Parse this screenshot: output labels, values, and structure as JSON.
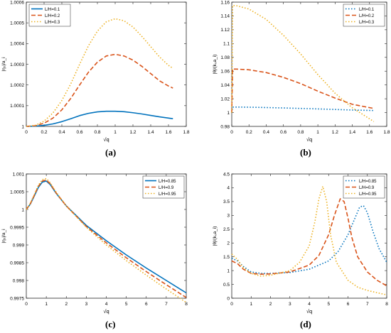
{
  "captions": {
    "a": "(a)",
    "b": "(b)",
    "c": "(c)",
    "d": "(d)"
  },
  "chart_data": [
    {
      "type": "line",
      "xlabel": "√q",
      "ylabel": "|η₀|/a_i",
      "xlim": [
        0,
        1.8
      ],
      "ylim": [
        1,
        1.0006
      ],
      "xticks": [
        0,
        0.2,
        0.4,
        0.6,
        0.8,
        1,
        1.2,
        1.4,
        1.6,
        1.8
      ],
      "xtick_labels": [
        "0",
        "0.2",
        "0.4",
        "0.6",
        "0.8",
        "1",
        "1.2",
        "1.4",
        "1.6",
        "1.8"
      ],
      "yticks": [
        1,
        1.0001,
        1.0002,
        1.0003,
        1.0004,
        1.0005,
        1.0006
      ],
      "ytick_labels": [
        "1",
        "1.0001",
        "1.0002",
        "1.0003",
        "1.0004",
        "1.0005",
        "1.0006"
      ],
      "legend": "top-left",
      "series": [
        {
          "name": "L/H=0.1",
          "color": "#0072BD",
          "style": "solid",
          "x": [
            0,
            0.1,
            0.2,
            0.3,
            0.4,
            0.5,
            0.6,
            0.7,
            0.8,
            0.9,
            1.0,
            1.1,
            1.2,
            1.3,
            1.4,
            1.5,
            1.6,
            1.65
          ],
          "y": [
            1.0,
            1.000001,
            1.000005,
            1.000012,
            1.000023,
            1.000037,
            1.000052,
            1.000063,
            1.00007,
            1.000073,
            1.000073,
            1.000071,
            1.000066,
            1.00006,
            1.000053,
            1.000046,
            1.00004,
            1.000037
          ]
        },
        {
          "name": "L/H=0.2",
          "color": "#D95319",
          "style": "dashed",
          "x": [
            0,
            0.1,
            0.2,
            0.3,
            0.4,
            0.5,
            0.6,
            0.7,
            0.8,
            0.9,
            1.0,
            1.1,
            1.2,
            1.3,
            1.4,
            1.5,
            1.6,
            1.65
          ],
          "y": [
            1.0,
            1.000003,
            1.000015,
            1.00004,
            1.00008,
            1.000135,
            1.0002,
            1.000262,
            1.00031,
            1.00034,
            1.000348,
            1.00034,
            1.00032,
            1.00029,
            1.000255,
            1.00022,
            1.000195,
            1.000185
          ]
        },
        {
          "name": "L/H=0.3",
          "color": "#EDB120",
          "style": "dotted",
          "x": [
            0,
            0.1,
            0.2,
            0.3,
            0.4,
            0.5,
            0.6,
            0.7,
            0.8,
            0.9,
            1.0,
            1.1,
            1.2,
            1.3,
            1.4,
            1.5,
            1.6,
            1.65
          ],
          "y": [
            1.0,
            1.000005,
            1.000025,
            1.000065,
            1.000125,
            1.000205,
            1.0003,
            1.00039,
            1.00046,
            1.000505,
            1.00052,
            1.00051,
            1.00048,
            1.000435,
            1.000385,
            1.000335,
            1.000295,
            1.00028
          ]
        }
      ]
    },
    {
      "type": "line",
      "xlabel": "√q",
      "ylabel": "|θ|/(k₀a_i)",
      "xlim": [
        0,
        1.8
      ],
      "ylim": [
        0.98,
        1.16
      ],
      "xticks": [
        0,
        0.2,
        0.4,
        0.6,
        0.8,
        1,
        1.2,
        1.4,
        1.6,
        1.8
      ],
      "xtick_labels": [
        "0",
        "0.2",
        "0.4",
        "0.6",
        "0.8",
        "1",
        "1.2",
        "1.4",
        "1.6",
        "1.8"
      ],
      "yticks": [
        0.98,
        1,
        1.02,
        1.04,
        1.06,
        1.08,
        1.1,
        1.12,
        1.14,
        1.16
      ],
      "ytick_labels": [
        "0.98",
        "1",
        "1.02",
        "1.04",
        "1.06",
        "1.08",
        "1.1",
        "1.12",
        "1.14",
        "1.16"
      ],
      "legend": "top-right",
      "series": [
        {
          "name": "L/H=0.1",
          "color": "#0072BD",
          "style": "dotted",
          "x": [
            0,
            0.01,
            0.05,
            0.2,
            0.4,
            0.6,
            0.8,
            1.0,
            1.2,
            1.4,
            1.65
          ],
          "y": [
            1.0,
            1.008,
            1.008,
            1.0078,
            1.0073,
            1.0067,
            1.006,
            1.0053,
            1.0045,
            1.0037,
            1.003
          ]
        },
        {
          "name": "L/H=0.2",
          "color": "#D95319",
          "style": "dashed",
          "x": [
            0,
            0.01,
            0.05,
            0.2,
            0.4,
            0.6,
            0.8,
            1.0,
            1.2,
            1.4,
            1.65
          ],
          "y": [
            1.0,
            1.063,
            1.063,
            1.062,
            1.058,
            1.051,
            1.042,
            1.031,
            1.021,
            1.012,
            1.006
          ]
        },
        {
          "name": "L/H=0.3",
          "color": "#EDB120",
          "style": "dotted",
          "x": [
            0,
            0.01,
            0.05,
            0.2,
            0.4,
            0.6,
            0.8,
            1.0,
            1.2,
            1.4,
            1.65
          ],
          "y": [
            1.0,
            1.155,
            1.155,
            1.15,
            1.135,
            1.112,
            1.085,
            1.055,
            1.028,
            1.007,
            0.987
          ]
        }
      ]
    },
    {
      "type": "line",
      "xlabel": "√q",
      "ylabel": "|η₀|/a_i",
      "xlim": [
        0,
        8
      ],
      "ylim": [
        0.9975,
        1.001
      ],
      "xticks": [
        0,
        1,
        2,
        3,
        4,
        5,
        6,
        7,
        8
      ],
      "xtick_labels": [
        "0",
        "1",
        "2",
        "3",
        "4",
        "5",
        "6",
        "7",
        "8"
      ],
      "yticks": [
        0.9975,
        0.998,
        0.9985,
        0.999,
        0.9995,
        1,
        1.0005,
        1.001
      ],
      "ytick_labels": [
        "0.9975",
        "0.998",
        "0.9985",
        "0.999",
        "0.9995",
        "1",
        "1.0005",
        "1.001"
      ],
      "legend": "top-right",
      "series": [
        {
          "name": "L/H=0.85",
          "color": "#0072BD",
          "style": "solid",
          "x": [
            0,
            0.2,
            0.4,
            0.6,
            0.8,
            1.0,
            1.2,
            1.5,
            2,
            3,
            4,
            5,
            6,
            7,
            8
          ],
          "y": [
            1.0,
            1.00015,
            1.00038,
            1.00062,
            1.00077,
            1.0008,
            1.0007,
            1.00045,
            1.0001,
            0.99955,
            0.99912,
            0.99872,
            0.99835,
            0.998,
            0.99765
          ]
        },
        {
          "name": "L/H=0.9",
          "color": "#D95319",
          "style": "dashed",
          "x": [
            0,
            0.2,
            0.4,
            0.6,
            0.8,
            1.0,
            1.2,
            1.5,
            2,
            3,
            4,
            5,
            6,
            7,
            8
          ],
          "y": [
            1.0,
            1.00016,
            1.0004,
            1.00065,
            1.0008,
            1.00083,
            1.00072,
            1.00046,
            1.0001,
            0.99952,
            0.99906,
            0.99864,
            0.99825,
            0.99788,
            0.99752
          ]
        },
        {
          "name": "L/H=0.95",
          "color": "#EDB120",
          "style": "dotted",
          "x": [
            0,
            0.2,
            0.4,
            0.6,
            0.8,
            1.0,
            1.2,
            1.5,
            2,
            3,
            4,
            5,
            6,
            7,
            8
          ],
          "y": [
            1.0,
            1.00017,
            1.00042,
            1.00068,
            1.00084,
            1.00087,
            1.00075,
            1.00048,
            1.0001,
            0.9995,
            0.999,
            0.99856,
            0.99815,
            0.99776,
            0.99738
          ]
        }
      ]
    },
    {
      "type": "line",
      "xlabel": "√q",
      "ylabel": "|θ|/(k₀a_i)",
      "xlim": [
        0,
        8
      ],
      "ylim": [
        0,
        4.5
      ],
      "xticks": [
        0,
        1,
        2,
        3,
        4,
        5,
        6,
        7,
        8
      ],
      "xtick_labels": [
        "0",
        "1",
        "2",
        "3",
        "4",
        "5",
        "6",
        "7",
        "8"
      ],
      "yticks": [
        0,
        0.5,
        1,
        1.5,
        2,
        2.5,
        3,
        3.5,
        4,
        4.5
      ],
      "ytick_labels": [
        "0",
        "0.5",
        "1",
        "1.5",
        "2",
        "2.5",
        "3",
        "3.5",
        "4",
        "4.5"
      ],
      "legend": "top-right",
      "series": [
        {
          "name": "L/H=0.85",
          "color": "#0072BD",
          "style": "dotted",
          "x": [
            0,
            0.3,
            0.6,
            1.0,
            1.5,
            2,
            3,
            4,
            5,
            5.5,
            6,
            6.3,
            6.6,
            6.8,
            7.0,
            7.3,
            7.6,
            8.0
          ],
          "y": [
            1.45,
            1.35,
            1.15,
            0.95,
            0.9,
            0.9,
            0.93,
            1.05,
            1.35,
            1.7,
            2.3,
            2.8,
            3.3,
            3.35,
            3.1,
            2.4,
            1.8,
            1.3
          ]
        },
        {
          "name": "L/H=0.9",
          "color": "#D95319",
          "style": "dashed",
          "x": [
            0,
            0.3,
            0.6,
            1.0,
            1.5,
            2,
            3,
            4,
            4.5,
            5.0,
            5.3,
            5.6,
            5.8,
            6.0,
            6.2,
            6.5,
            7.0,
            7.5,
            8.0
          ],
          "y": [
            1.35,
            1.25,
            1.05,
            0.9,
            0.87,
            0.88,
            0.95,
            1.2,
            1.55,
            2.3,
            3.0,
            3.6,
            3.5,
            2.9,
            2.2,
            1.5,
            0.95,
            0.65,
            0.45
          ]
        },
        {
          "name": "L/H=0.95",
          "color": "#EDB120",
          "style": "dotted",
          "x": [
            0,
            0.3,
            0.6,
            1.0,
            1.5,
            2,
            3,
            3.5,
            4.0,
            4.3,
            4.5,
            4.7,
            4.9,
            5.1,
            5.4,
            6.0,
            6.5,
            7.0,
            7.5,
            8.0
          ],
          "y": [
            1.6,
            1.4,
            1.1,
            0.9,
            0.8,
            0.83,
            1.0,
            1.3,
            1.9,
            2.8,
            3.6,
            4.05,
            3.5,
            2.3,
            1.3,
            0.65,
            0.4,
            0.28,
            0.2,
            0.12
          ]
        }
      ]
    }
  ]
}
